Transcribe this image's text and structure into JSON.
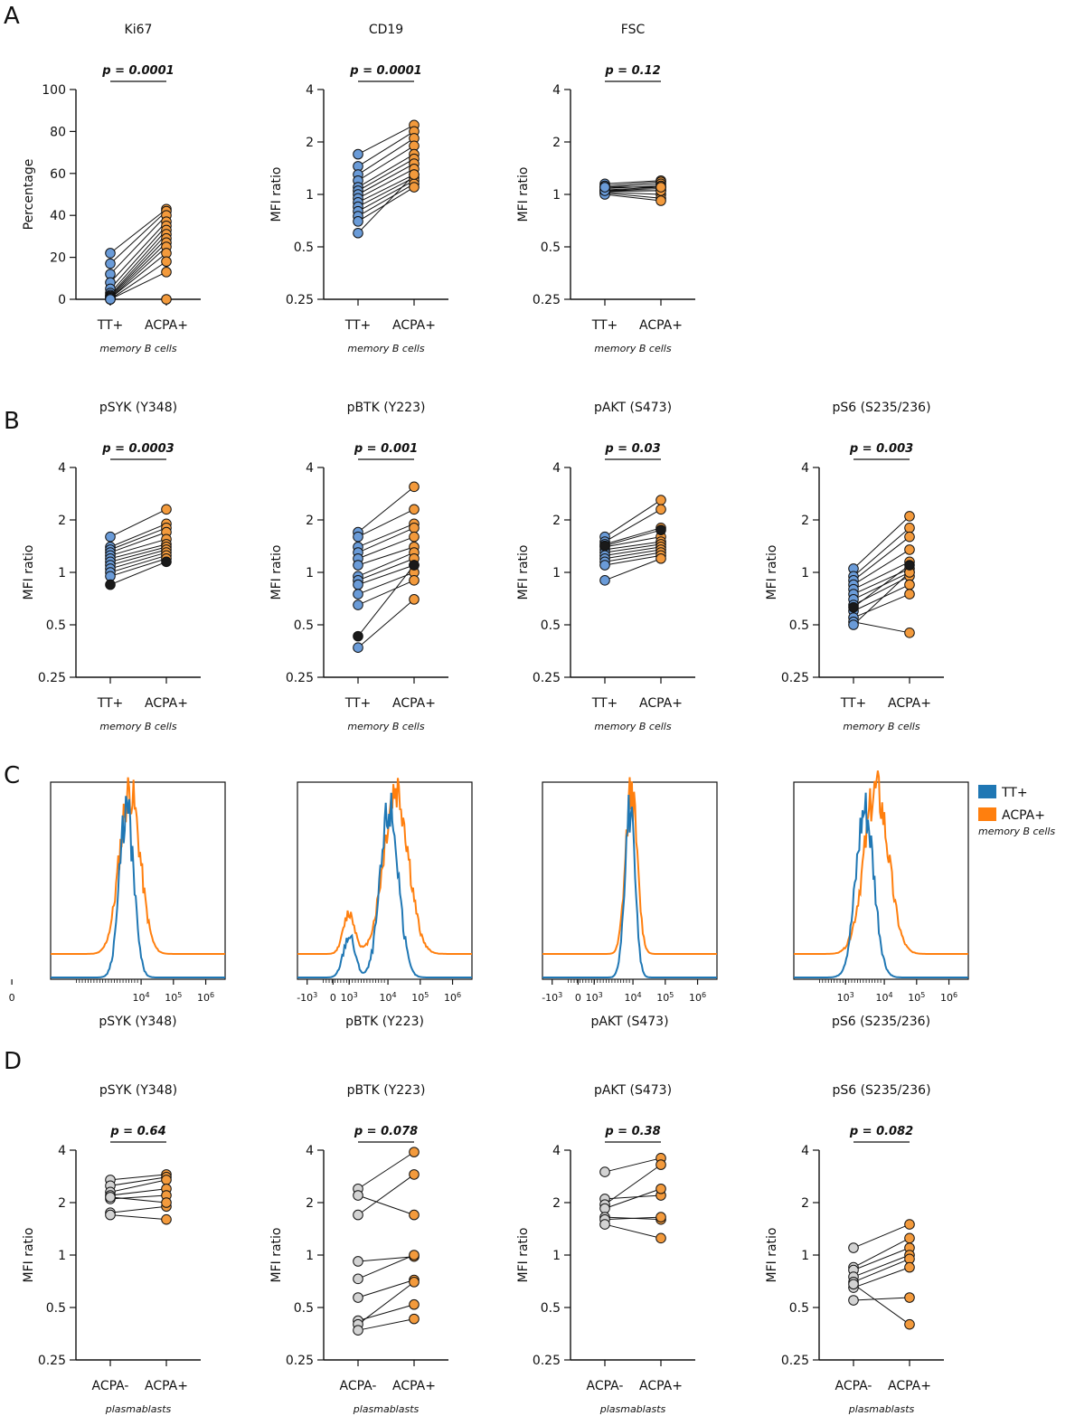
{
  "colors": {
    "tt": "#6a9bd8",
    "acpa": "#f39a3c",
    "black": "#1a1a1a",
    "grey": "#d3d3d3",
    "hist_tt": "#1f77b4",
    "hist_acpa": "#ff7f0e"
  },
  "panels": {
    "A": "A",
    "B": "B",
    "C": "C",
    "D": "D"
  },
  "legend": {
    "tt": "TT+",
    "acpa": "ACPA+",
    "population": "memory B cells"
  },
  "chart_data": [
    {
      "id": "A-ki67",
      "type": "scatter",
      "title": "Ki67",
      "pvalue": "p = 0.0001",
      "ylabel": "Percentage",
      "scale": "linear",
      "ylim": [
        0,
        100
      ],
      "yticks": [
        "0",
        "20",
        "40",
        "60",
        "80",
        "100"
      ],
      "categories": [
        "TT+",
        "ACPA+"
      ],
      "population": "memory B cells",
      "pairs": [
        [
          22,
          43
        ],
        [
          17,
          42
        ],
        [
          12,
          40
        ],
        [
          8,
          37
        ],
        [
          5,
          35
        ],
        [
          3,
          33
        ],
        [
          2,
          31
        ],
        [
          1.5,
          29
        ],
        [
          1,
          27
        ],
        [
          0.5,
          25
        ],
        [
          0.5,
          22
        ],
        [
          0,
          18
        ],
        [
          0,
          13
        ],
        [
          0,
          0
        ]
      ]
    },
    {
      "id": "A-cd19",
      "type": "scatter",
      "title": "CD19",
      "pvalue": "p = 0.0001",
      "ylabel": "MFI ratio",
      "scale": "log2",
      "ylim": [
        0.25,
        4
      ],
      "yticks": [
        "0.25",
        "0.5",
        "1",
        "2",
        "4"
      ],
      "categories": [
        "TT+",
        "ACPA+"
      ],
      "population": "memory B cells",
      "pairs": [
        [
          1.7,
          2.5
        ],
        [
          1.45,
          2.3
        ],
        [
          1.3,
          2.1
        ],
        [
          1.2,
          1.9
        ],
        [
          1.1,
          1.7
        ],
        [
          1.05,
          1.6
        ],
        [
          1.0,
          1.5
        ],
        [
          0.95,
          1.4
        ],
        [
          0.9,
          1.3
        ],
        [
          0.85,
          1.25
        ],
        [
          0.8,
          1.2
        ],
        [
          0.75,
          1.15
        ],
        [
          0.7,
          1.1
        ],
        [
          0.6,
          1.3
        ]
      ]
    },
    {
      "id": "A-fsc",
      "type": "scatter",
      "title": "FSC",
      "pvalue": "p = 0.12",
      "ylabel": "MFI ratio",
      "scale": "log2",
      "ylim": [
        0.25,
        4
      ],
      "yticks": [
        "0.25",
        "0.5",
        "1",
        "2",
        "4"
      ],
      "categories": [
        "TT+",
        "ACPA+"
      ],
      "population": "memory B cells",
      "pairs": [
        [
          1.15,
          1.2
        ],
        [
          1.12,
          1.18
        ],
        [
          1.1,
          1.15
        ],
        [
          1.08,
          1.12
        ],
        [
          1.06,
          1.1
        ],
        [
          1.05,
          1.08
        ],
        [
          1.04,
          1.05
        ],
        [
          1.03,
          1.0
        ],
        [
          1.02,
          0.95
        ],
        [
          1.0,
          0.92
        ],
        [
          1.05,
          1.05
        ],
        [
          1.1,
          1.1
        ]
      ]
    },
    {
      "id": "B-psyk",
      "type": "scatter",
      "title": "pSYK (Y348)",
      "pvalue": "p = 0.0003",
      "ylabel": "MFI ratio",
      "scale": "log2",
      "ylim": [
        0.25,
        4
      ],
      "yticks": [
        "0.25",
        "0.5",
        "1",
        "2",
        "4"
      ],
      "categories": [
        "TT+",
        "ACPA+"
      ],
      "population": "memory B cells",
      "pairs": [
        [
          1.6,
          2.3
        ],
        [
          1.4,
          1.9
        ],
        [
          1.35,
          1.8
        ],
        [
          1.3,
          1.7
        ],
        [
          1.25,
          1.55
        ],
        [
          1.2,
          1.45
        ],
        [
          1.15,
          1.4
        ],
        [
          1.1,
          1.35
        ],
        [
          1.05,
          1.3
        ],
        [
          1.0,
          1.25
        ],
        [
          0.95,
          1.2
        ],
        [
          0.85,
          1.15
        ]
      ],
      "black": [
        11
      ]
    },
    {
      "id": "B-pbtk",
      "type": "scatter",
      "title": "pBTK (Y223)",
      "pvalue": "p = 0.001",
      "ylabel": "MFI ratio",
      "scale": "log2",
      "ylim": [
        0.25,
        4
      ],
      "yticks": [
        "0.25",
        "0.5",
        "1",
        "2",
        "4"
      ],
      "categories": [
        "TT+",
        "ACPA+"
      ],
      "population": "memory B cells",
      "pairs": [
        [
          1.7,
          3.1
        ],
        [
          1.6,
          2.3
        ],
        [
          1.4,
          1.9
        ],
        [
          1.3,
          1.8
        ],
        [
          1.2,
          1.6
        ],
        [
          1.1,
          1.4
        ],
        [
          0.95,
          1.3
        ],
        [
          0.9,
          1.2
        ],
        [
          0.85,
          1.1
        ],
        [
          0.75,
          1.0
        ],
        [
          0.65,
          0.9
        ],
        [
          0.43,
          1.1
        ],
        [
          0.37,
          0.7
        ]
      ],
      "black": [
        11
      ]
    },
    {
      "id": "B-pakt",
      "type": "scatter",
      "title": "pAKT (S473)",
      "pvalue": "p = 0.03",
      "ylabel": "MFI ratio",
      "scale": "log2",
      "ylim": [
        0.25,
        4
      ],
      "yticks": [
        "0.25",
        "0.5",
        "1",
        "2",
        "4"
      ],
      "categories": [
        "TT+",
        "ACPA+"
      ],
      "population": "memory B cells",
      "pairs": [
        [
          1.6,
          2.6
        ],
        [
          1.5,
          2.3
        ],
        [
          1.45,
          1.8
        ],
        [
          1.4,
          1.6
        ],
        [
          1.35,
          1.5
        ],
        [
          1.3,
          1.45
        ],
        [
          1.25,
          1.4
        ],
        [
          1.2,
          1.35
        ],
        [
          1.15,
          1.3
        ],
        [
          1.1,
          1.25
        ],
        [
          0.9,
          1.2
        ],
        [
          1.42,
          1.75
        ]
      ],
      "black": [
        11
      ]
    },
    {
      "id": "B-ps6",
      "type": "scatter",
      "title": "pS6 (S235/236)",
      "pvalue": "p = 0.003",
      "ylabel": "MFI ratio",
      "scale": "log2",
      "ylim": [
        0.25,
        4
      ],
      "yticks": [
        "0.25",
        "0.5",
        "1",
        "2",
        "4"
      ],
      "categories": [
        "TT+",
        "ACPA+"
      ],
      "population": "memory B cells",
      "pairs": [
        [
          1.05,
          2.1
        ],
        [
          0.95,
          1.8
        ],
        [
          0.9,
          1.6
        ],
        [
          0.85,
          1.35
        ],
        [
          0.8,
          1.15
        ],
        [
          0.75,
          1.05
        ],
        [
          0.7,
          1.0
        ],
        [
          0.65,
          0.95
        ],
        [
          0.6,
          0.85
        ],
        [
          0.55,
          0.75
        ],
        [
          0.52,
          0.45
        ],
        [
          0.5,
          1.0
        ],
        [
          0.63,
          1.1
        ]
      ],
      "black": [
        12
      ]
    },
    {
      "id": "D-psyk",
      "type": "scatter",
      "title": "pSYK (Y348)",
      "pvalue": "p = 0.64",
      "ylabel": "MFI ratio",
      "scale": "log2",
      "ylim": [
        0.25,
        4
      ],
      "yticks": [
        "0.25",
        "0.5",
        "1",
        "2",
        "4"
      ],
      "categories": [
        "ACPA-",
        "ACPA+"
      ],
      "population": "plasmablasts",
      "pairs": [
        [
          2.7,
          2.9
        ],
        [
          2.5,
          2.8
        ],
        [
          2.3,
          2.7
        ],
        [
          2.2,
          2.4
        ],
        [
          2.1,
          2.2
        ],
        [
          1.75,
          1.9
        ],
        [
          1.7,
          1.6
        ],
        [
          2.15,
          2.0
        ]
      ],
      "grey": true
    },
    {
      "id": "D-pbtk",
      "type": "scatter",
      "title": "pBTK (Y223)",
      "pvalue": "p = 0.078",
      "ylabel": "MFI ratio",
      "scale": "log2",
      "ylim": [
        0.25,
        4
      ],
      "yticks": [
        "0.25",
        "0.5",
        "1",
        "2",
        "4"
      ],
      "categories": [
        "ACPA-",
        "ACPA+"
      ],
      "population": "plasmablasts",
      "pairs": [
        [
          2.4,
          3.9
        ],
        [
          2.2,
          1.7
        ],
        [
          1.7,
          2.9
        ],
        [
          0.92,
          0.98
        ],
        [
          0.73,
          1.0
        ],
        [
          0.57,
          0.72
        ],
        [
          0.42,
          0.52
        ],
        [
          0.4,
          0.7
        ],
        [
          0.37,
          0.43
        ]
      ],
      "grey": true
    },
    {
      "id": "D-pakt",
      "type": "scatter",
      "title": "pAKT (S473)",
      "pvalue": "p = 0.38",
      "ylabel": "MFI ratio",
      "scale": "log2",
      "ylim": [
        0.25,
        4
      ],
      "yticks": [
        "0.25",
        "0.5",
        "1",
        "2",
        "4"
      ],
      "categories": [
        "ACPA-",
        "ACPA+"
      ],
      "population": "plasmablasts",
      "pairs": [
        [
          3.0,
          3.6
        ],
        [
          2.1,
          2.2
        ],
        [
          1.95,
          3.3
        ],
        [
          1.85,
          2.4
        ],
        [
          1.65,
          1.6
        ],
        [
          1.6,
          1.65
        ],
        [
          1.5,
          1.25
        ]
      ],
      "grey": true
    },
    {
      "id": "D-ps6",
      "type": "scatter",
      "title": "pS6 (S235/236)",
      "pvalue": "p = 0.082",
      "ylabel": "MFI ratio",
      "scale": "log2",
      "ylim": [
        0.25,
        4
      ],
      "yticks": [
        "0.25",
        "0.5",
        "1",
        "2",
        "4"
      ],
      "categories": [
        "ACPA-",
        "ACPA+"
      ],
      "population": "plasmablasts",
      "pairs": [
        [
          1.1,
          1.5
        ],
        [
          0.85,
          1.25
        ],
        [
          0.82,
          1.1
        ],
        [
          0.75,
          1.0
        ],
        [
          0.7,
          0.95
        ],
        [
          0.65,
          0.85
        ],
        [
          0.55,
          0.57
        ],
        [
          0.68,
          0.4
        ]
      ],
      "grey": true
    },
    {
      "id": "C-psyk",
      "type": "histogram",
      "xlabel": "pSYK (Y348)",
      "xticks": [
        {
          "label": "0",
          "v": 0
        },
        {
          "label": "10^4",
          "v": 4
        },
        {
          "label": "10^5",
          "v": 5
        },
        {
          "label": "10^6",
          "v": 6
        }
      ],
      "tt": {
        "center": 3.55,
        "width": 0.22
      },
      "acpa": {
        "center": 3.65,
        "width": 0.32
      }
    },
    {
      "id": "C-pbtk",
      "type": "histogram",
      "xlabel": "pBTK (Y223)",
      "xticks": [
        {
          "label": "-10^3",
          "v": 1.5
        },
        {
          "label": "0",
          "v": 2.3
        },
        {
          "label": "10^3",
          "v": 2.8
        },
        {
          "label": "10^4",
          "v": 4
        },
        {
          "label": "10^5",
          "v": 5
        },
        {
          "label": "10^6",
          "v": 6
        }
      ],
      "tt": {
        "center": 4.05,
        "width": 0.28
      },
      "acpa": {
        "center": 4.25,
        "width": 0.38
      }
    },
    {
      "id": "C-pakt",
      "type": "histogram",
      "xlabel": "pAKT (S473)",
      "xticks": [
        {
          "label": "-10^3",
          "v": 1.5
        },
        {
          "label": "0",
          "v": 2.3
        },
        {
          "label": "10^3",
          "v": 2.8
        },
        {
          "label": "10^4",
          "v": 4
        },
        {
          "label": "10^5",
          "v": 5
        },
        {
          "label": "10^6",
          "v": 6
        }
      ],
      "tt": {
        "center": 3.9,
        "width": 0.16
      },
      "acpa": {
        "center": 3.95,
        "width": 0.18
      }
    },
    {
      "id": "C-ps6",
      "type": "histogram",
      "xlabel": "pS6 (S235/236)",
      "xticks": [
        {
          "label": "10^3",
          "v": 2.8
        },
        {
          "label": "10^4",
          "v": 4
        },
        {
          "label": "10^5",
          "v": 5
        },
        {
          "label": "10^6",
          "v": 6
        }
      ],
      "tt": {
        "center": 3.4,
        "width": 0.28
      },
      "acpa": {
        "center": 3.75,
        "width": 0.38
      }
    }
  ]
}
